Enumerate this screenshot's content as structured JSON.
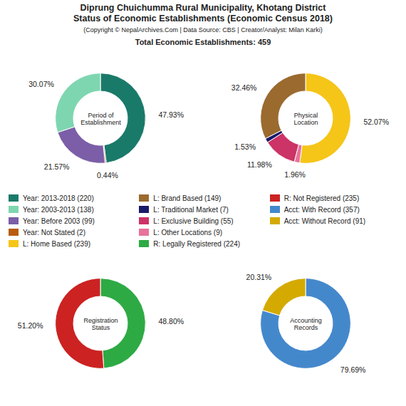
{
  "title": "Diprung Chuichumma Rural Municipality, Khotang District\nStatus of Economic Establishments (Economic Census 2018)",
  "subtitle": "(Copyright © NepalArchives.Com | Data Source: CBS | Creator/Analyst: Milan Karki)",
  "annotations": [
    "Total Economic Establishments: 459"
  ],
  "legend_entries": [
    {
      "name": "Year: 2013-2018 (220)",
      "color": "#1a7a6a"
    },
    {
      "name": "Year: 2003-2013 (138)",
      "color": "#7ed6b0"
    },
    {
      "name": "Year: Before 2003 (99)",
      "color": "#7b5ea7"
    },
    {
      "name": "Year: Not Stated (2)",
      "color": "#b85c10"
    },
    {
      "name": "L: Home Based (239)",
      "color": "#f5c518"
    },
    {
      "name": "L: Brand Based (149)",
      "color": "#9b6a2f"
    },
    {
      "name": "L: Traditional Market (7)",
      "color": "#1a1a6a"
    },
    {
      "name": "L: Exclusive Building (55)",
      "color": "#cc3366"
    },
    {
      "name": "L: Other Locations (9)",
      "color": "#e8729a"
    },
    {
      "name": "R: Legally Registered (224)",
      "color": "#2eaa44"
    },
    {
      "name": "R: Not Registered (235)",
      "color": "#cc2222"
    },
    {
      "name": "Acct: With Record (357)",
      "color": "#4488cc"
    },
    {
      "name": "Acct: Without Record (91)",
      "color": "#d4aa00"
    }
  ],
  "chart_data": [
    {
      "type": "pie",
      "title": "Period of\nEstablishment",
      "values": [
        47.93,
        0.44,
        21.57,
        30.07
      ],
      "value_labels": [
        "47.93%",
        "0.44%",
        "21.57%",
        "30.07%"
      ],
      "colors": [
        "#1a7a6a",
        "#b85c10",
        "#7b5ea7",
        "#7ed6b0"
      ],
      "data_labels": true
    },
    {
      "type": "pie",
      "title": "Physical\nLocation",
      "values": [
        52.07,
        1.96,
        11.98,
        1.53,
        32.46
      ],
      "value_labels": [
        "52.07%",
        "1.96%",
        "11.98%",
        "1.53%",
        "32.46%"
      ],
      "colors": [
        "#f5c518",
        "#e8729a",
        "#cc3366",
        "#1a1a6a",
        "#9b6a2f"
      ],
      "data_labels": true
    },
    {
      "type": "pie",
      "title": "Registration\nStatus",
      "values": [
        48.8,
        51.2
      ],
      "value_labels": [
        "48.80%",
        "51.20%"
      ],
      "colors": [
        "#2eaa44",
        "#cc2222"
      ],
      "data_labels": true
    },
    {
      "type": "pie",
      "title": "Accounting\nRecords",
      "values": [
        79.69,
        20.31
      ],
      "value_labels": [
        "79.69%",
        "20.31%"
      ],
      "colors": [
        "#4488cc",
        "#d4aa00"
      ],
      "data_labels": true
    }
  ]
}
